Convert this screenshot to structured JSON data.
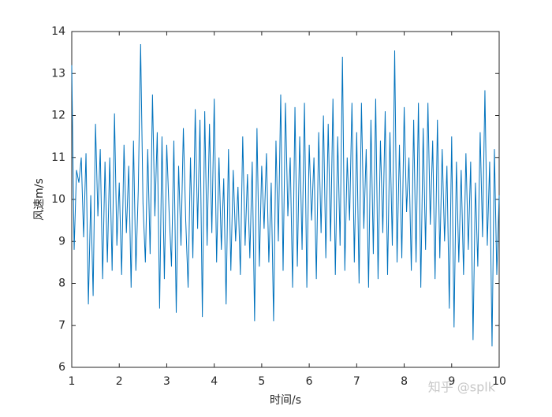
{
  "chart_data": {
    "type": "line",
    "xlabel": "时间/s",
    "ylabel": "风速m/s",
    "watermark": "知乎 @splk",
    "xlim": [
      1,
      10
    ],
    "ylim": [
      6,
      14
    ],
    "xticks": [
      1,
      2,
      3,
      4,
      5,
      6,
      7,
      8,
      9,
      10
    ],
    "yticks": [
      6,
      7,
      8,
      9,
      10,
      11,
      12,
      13,
      14
    ],
    "series": [
      {
        "color": "#0072bd",
        "x": [
          1,
          1.05,
          1.1,
          1.15,
          1.2,
          1.25,
          1.3,
          1.35,
          1.4,
          1.45,
          1.5,
          1.55,
          1.6,
          1.65,
          1.7,
          1.75,
          1.8,
          1.85,
          1.9,
          1.95,
          2,
          2.05,
          2.1,
          2.15,
          2.2,
          2.25,
          2.3,
          2.35,
          2.4,
          2.45,
          2.5,
          2.55,
          2.6,
          2.65,
          2.7,
          2.75,
          2.8,
          2.85,
          2.9,
          2.95,
          3,
          3.05,
          3.1,
          3.15,
          3.2,
          3.25,
          3.3,
          3.35,
          3.4,
          3.45,
          3.5,
          3.55,
          3.6,
          3.65,
          3.7,
          3.75,
          3.8,
          3.85,
          3.9,
          3.95,
          4,
          4.05,
          4.1,
          4.15,
          4.2,
          4.25,
          4.3,
          4.35,
          4.4,
          4.45,
          4.5,
          4.55,
          4.6,
          4.65,
          4.7,
          4.75,
          4.8,
          4.85,
          4.9,
          4.95,
          5,
          5.05,
          5.1,
          5.15,
          5.2,
          5.25,
          5.3,
          5.35,
          5.4,
          5.45,
          5.5,
          5.55,
          5.6,
          5.65,
          5.7,
          5.75,
          5.8,
          5.85,
          5.9,
          5.95,
          6,
          6.05,
          6.1,
          6.15,
          6.2,
          6.25,
          6.3,
          6.35,
          6.4,
          6.45,
          6.5,
          6.55,
          6.6,
          6.65,
          6.7,
          6.75,
          6.8,
          6.85,
          6.9,
          6.95,
          7,
          7.05,
          7.1,
          7.15,
          7.2,
          7.25,
          7.3,
          7.35,
          7.4,
          7.45,
          7.5,
          7.55,
          7.6,
          7.65,
          7.7,
          7.75,
          7.8,
          7.85,
          7.9,
          7.95,
          8,
          8.05,
          8.1,
          8.15,
          8.2,
          8.25,
          8.3,
          8.35,
          8.4,
          8.45,
          8.5,
          8.55,
          8.6,
          8.65,
          8.7,
          8.75,
          8.8,
          8.85,
          8.9,
          8.95,
          9,
          9.05,
          9.1,
          9.15,
          9.2,
          9.25,
          9.3,
          9.35,
          9.4,
          9.45,
          9.5,
          9.55,
          9.6,
          9.65,
          9.7,
          9.75,
          9.8,
          9.85,
          9.9,
          9.95,
          10
        ],
        "values": [
          13.2,
          8.8,
          10.7,
          10.4,
          11.0,
          9.1,
          11.1,
          7.5,
          10.1,
          7.7,
          11.8,
          9.6,
          11.2,
          8.1,
          10.9,
          8.5,
          11.0,
          8.3,
          12.05,
          8.9,
          10.4,
          8.2,
          11.3,
          9.2,
          10.8,
          7.9,
          11.4,
          8.3,
          10.2,
          13.7,
          9.9,
          8.5,
          11.2,
          8.7,
          12.5,
          9.6,
          11.6,
          7.4,
          11.5,
          8.1,
          11.3,
          9.7,
          8.4,
          11.4,
          7.3,
          10.8,
          8.9,
          11.7,
          9.5,
          7.9,
          11.0,
          8.6,
          12.15,
          9.3,
          11.9,
          7.2,
          12.1,
          8.9,
          11.8,
          9.2,
          12.4,
          8.5,
          11.0,
          8.8,
          10.5,
          7.5,
          11.2,
          8.3,
          10.7,
          9.0,
          10.3,
          8.2,
          11.5,
          8.9,
          10.6,
          8.6,
          10.9,
          7.1,
          11.7,
          8.4,
          10.8,
          9.3,
          11.1,
          8.5,
          10.4,
          7.1,
          11.4,
          9.0,
          12.5,
          8.3,
          12.3,
          9.6,
          11.0,
          7.9,
          12.2,
          8.4,
          11.5,
          8.8,
          12.3,
          7.9,
          11.3,
          9.5,
          11.0,
          8.1,
          11.6,
          9.2,
          12.0,
          8.6,
          11.8,
          9.0,
          12.4,
          8.2,
          11.5,
          8.9,
          13.4,
          8.3,
          11.0,
          9.5,
          12.3,
          8.5,
          11.6,
          8.0,
          12.3,
          9.3,
          11.2,
          7.9,
          11.9,
          8.7,
          12.4,
          8.1,
          11.4,
          9.2,
          12.1,
          8.2,
          11.6,
          8.9,
          13.55,
          8.5,
          11.3,
          8.6,
          12.2,
          9.7,
          11.0,
          8.3,
          11.9,
          8.5,
          12.3,
          7.9,
          11.7,
          8.8,
          12.3,
          9.4,
          11.4,
          8.1,
          11.9,
          8.6,
          11.2,
          9.0,
          10.8,
          7.4,
          11.5,
          6.95,
          10.9,
          8.5,
          10.7,
          8.2,
          11.1,
          8.8,
          10.9,
          6.65,
          10.4,
          8.4,
          11.6,
          9.1,
          12.6,
          8.9,
          10.9,
          6.5,
          11.2,
          8.2,
          10.1
        ]
      }
    ]
  }
}
